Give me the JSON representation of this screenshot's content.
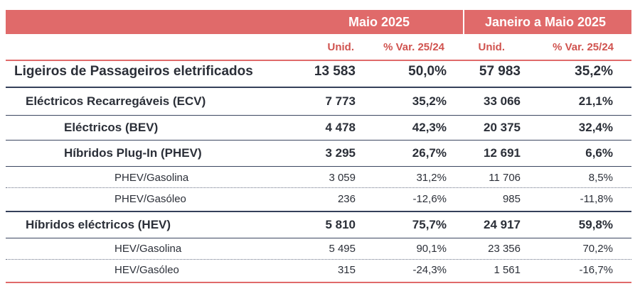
{
  "header": {
    "period_1": "Maio 2025",
    "period_2": "Janeiro a Maio 2025",
    "col_units": "Unid.",
    "col_var": "% Var. 25/24"
  },
  "rows": [
    {
      "label": "Ligeiros de Passageiros eletrificados",
      "units_may": "13 583",
      "var_may": "50,0%",
      "units_ytd": "57 983",
      "var_ytd": "35,2%"
    },
    {
      "label": "Eléctricos Recarregáveis (ECV)",
      "units_may": "7 773",
      "var_may": "35,2%",
      "units_ytd": "33 066",
      "var_ytd": "21,1%"
    },
    {
      "label": "Eléctricos (BEV)",
      "units_may": "4 478",
      "var_may": "42,3%",
      "units_ytd": "20 375",
      "var_ytd": "32,4%"
    },
    {
      "label": "Híbridos Plug-In (PHEV)",
      "units_may": "3 295",
      "var_may": "26,7%",
      "units_ytd": "12 691",
      "var_ytd": "6,6%"
    },
    {
      "label": "PHEV/Gasolina",
      "units_may": "3 059",
      "var_may": "31,2%",
      "units_ytd": "11 706",
      "var_ytd": "8,5%"
    },
    {
      "label": "PHEV/Gasóleo",
      "units_may": "236",
      "var_may": "-12,6%",
      "units_ytd": "985",
      "var_ytd": "-11,8%"
    },
    {
      "label": "Híbridos eléctricos (HEV)",
      "units_may": "5 810",
      "var_may": "75,7%",
      "units_ytd": "24 917",
      "var_ytd": "59,8%"
    },
    {
      "label": "HEV/Gasolina",
      "units_may": "5 495",
      "var_may": "90,1%",
      "units_ytd": "23 356",
      "var_ytd": "70,2%"
    },
    {
      "label": "HEV/Gasóleo",
      "units_may": "315",
      "var_may": "-24,3%",
      "units_ytd": "1 561",
      "var_ytd": "-16,7%"
    }
  ]
}
